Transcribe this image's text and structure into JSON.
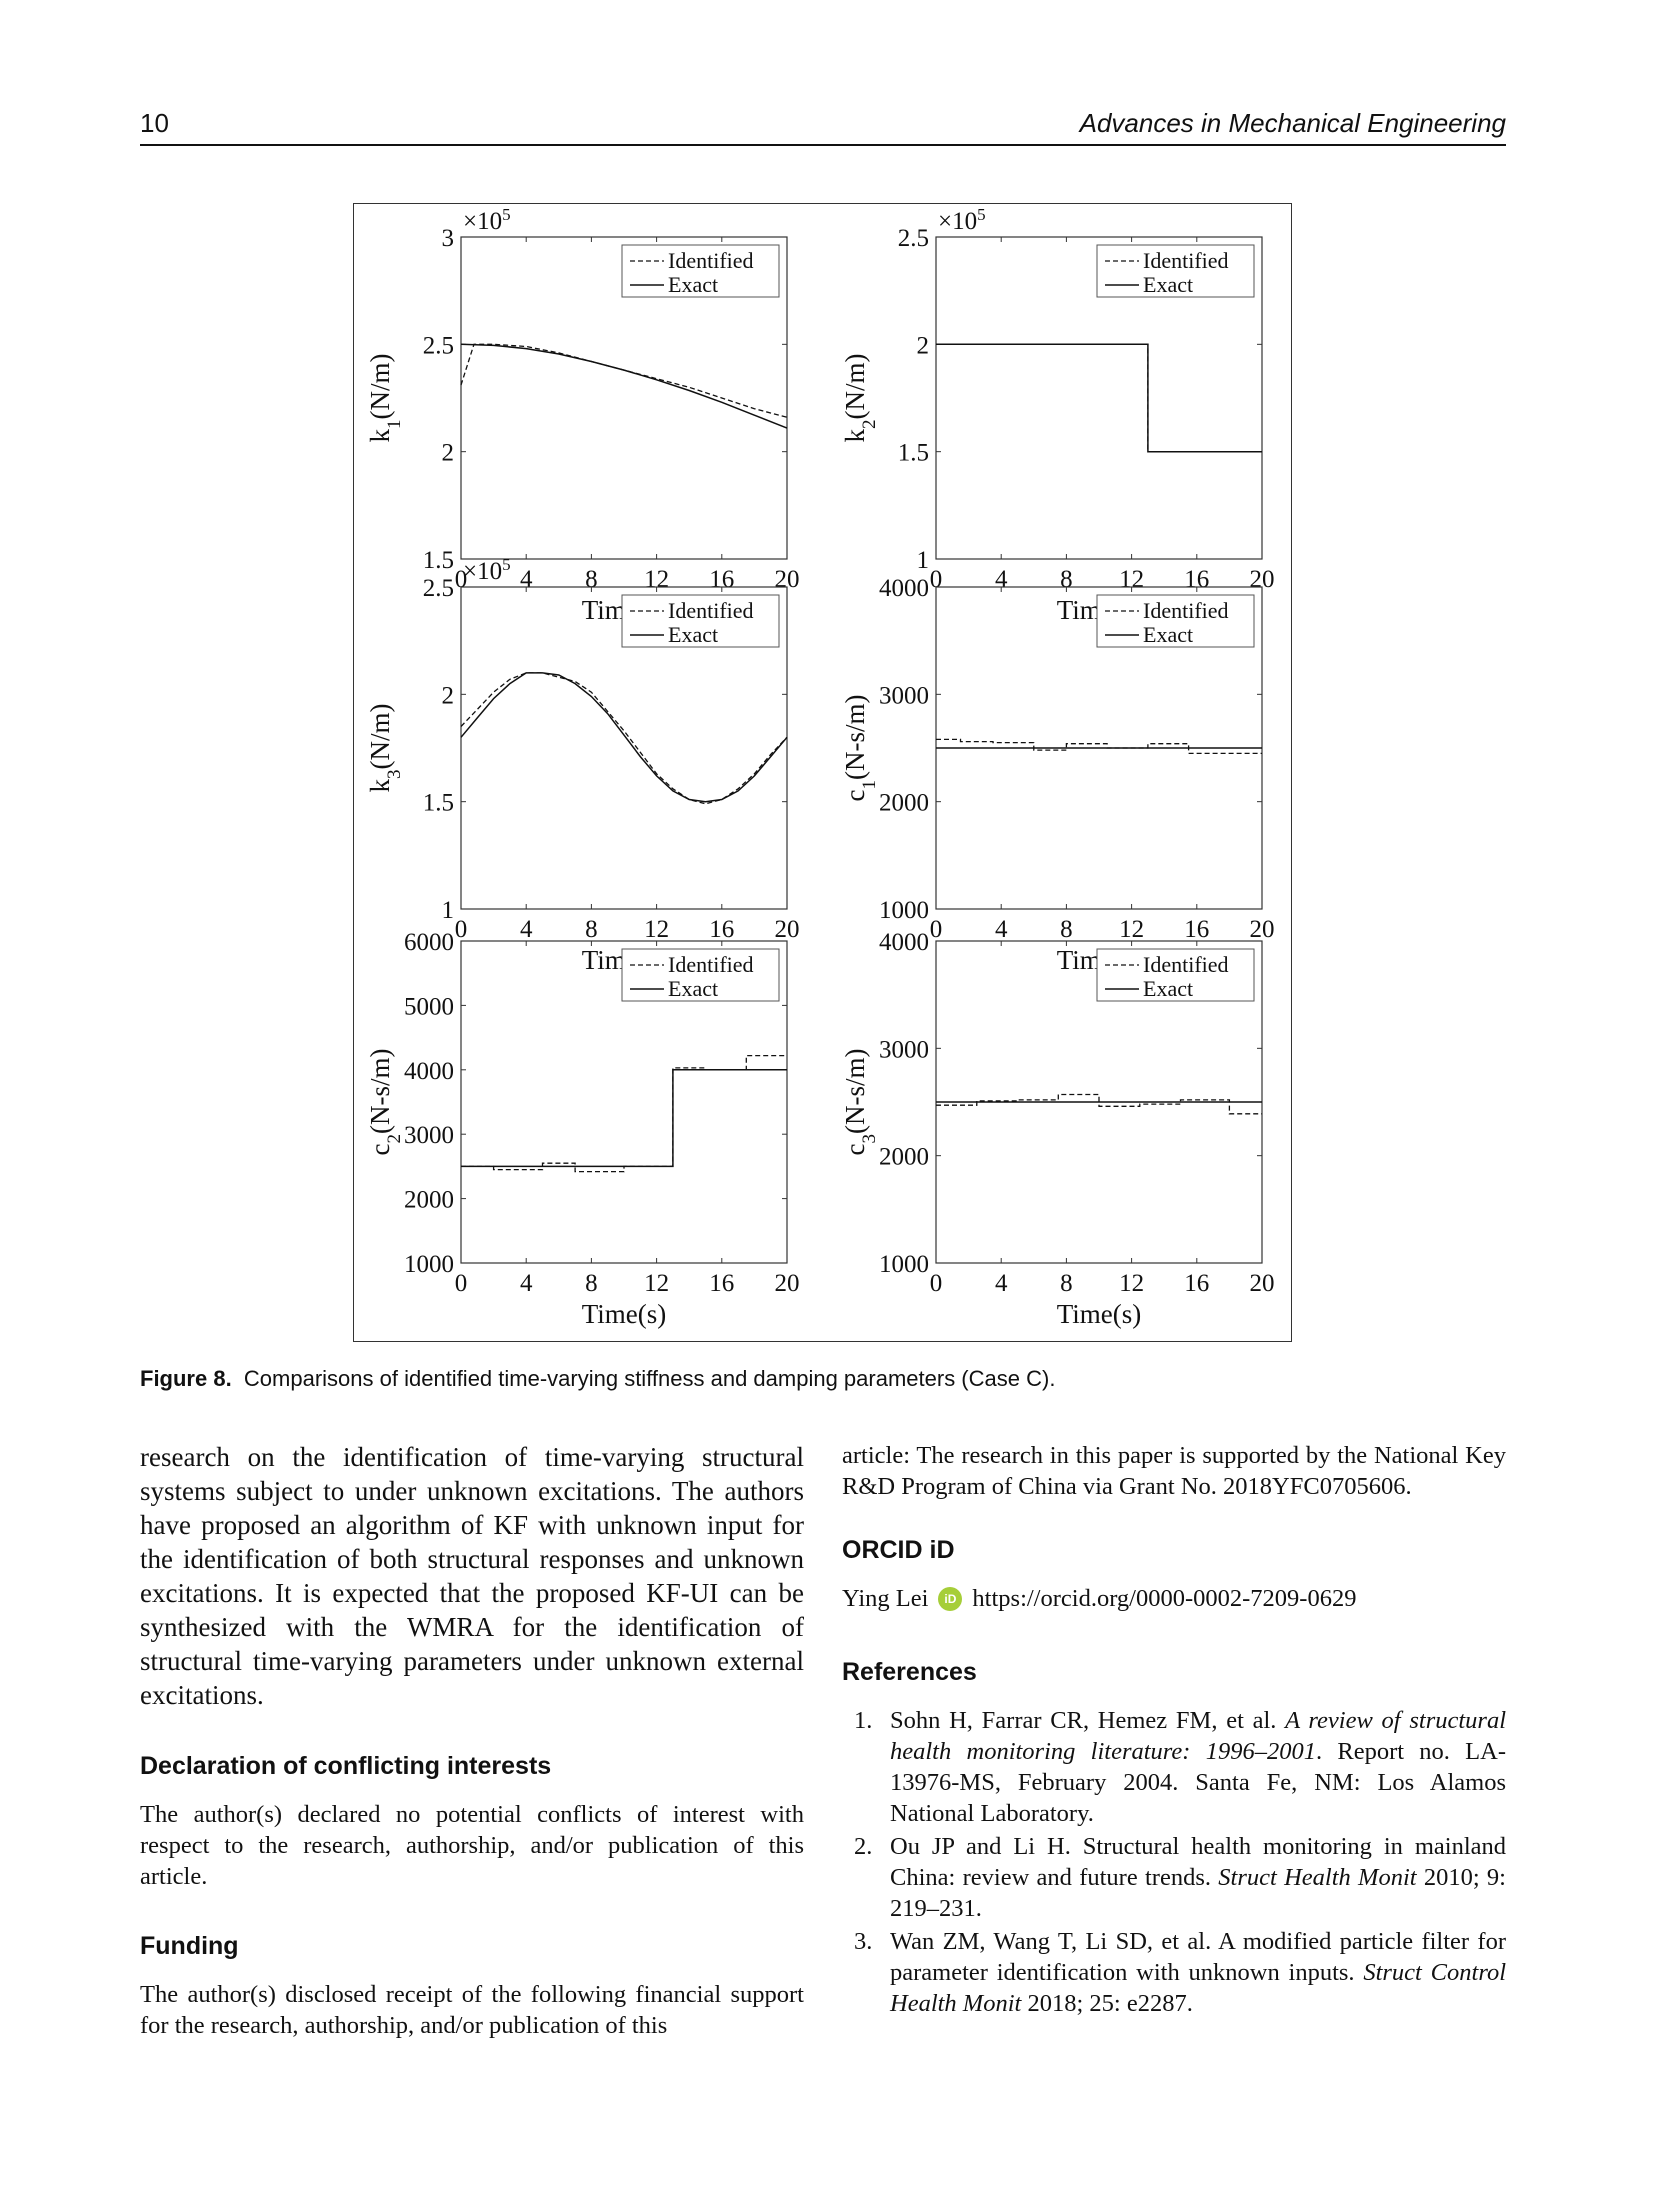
{
  "header": {
    "page_number": "10",
    "journal": "Advances in Mechanical Engineering"
  },
  "figure": {
    "caption_label": "Figure 8.",
    "caption_text": "Comparisons of identified time-varying stiffness and damping parameters (Case C).",
    "legend": {
      "identified": "Identified",
      "exact": "Exact"
    }
  },
  "chart_data": [
    {
      "type": "line",
      "id": "k1",
      "ylabel": "k1(N/m)",
      "xlabel": "Time(s)",
      "multiplier": "×10^5",
      "xlim": [
        0,
        20
      ],
      "ylim": [
        1.5,
        3
      ],
      "xticks": [
        "0",
        "4",
        "8",
        "12",
        "16",
        "20"
      ],
      "yticks": [
        "1.5",
        "2",
        "2.5",
        "3"
      ],
      "series": [
        {
          "name": "Identified",
          "x": [
            0,
            0.8,
            2,
            4,
            6,
            8,
            10,
            12,
            14,
            16,
            18,
            20
          ],
          "y": [
            2.31,
            2.5,
            2.5,
            2.49,
            2.46,
            2.42,
            2.38,
            2.34,
            2.3,
            2.25,
            2.2,
            2.16
          ]
        },
        {
          "name": "Exact",
          "x": [
            0,
            2,
            4,
            6,
            8,
            10,
            12,
            14,
            16,
            18,
            20
          ],
          "y": [
            2.5,
            2.495,
            2.48,
            2.455,
            2.42,
            2.38,
            2.335,
            2.285,
            2.23,
            2.17,
            2.11
          ]
        }
      ]
    },
    {
      "type": "line",
      "id": "k2",
      "ylabel": "k2(N/m)",
      "xlabel": "Time(s)",
      "multiplier": "×10^5",
      "xlim": [
        0,
        20
      ],
      "ylim": [
        1,
        2.5
      ],
      "xticks": [
        "0",
        "4",
        "8",
        "12",
        "16",
        "20"
      ],
      "yticks": [
        "1",
        "1.5",
        "2",
        "2.5"
      ],
      "series": [
        {
          "name": "Identified",
          "x": [
            0,
            13,
            13,
            20
          ],
          "y": [
            2.0,
            2.0,
            1.5,
            1.5
          ]
        },
        {
          "name": "Exact",
          "x": [
            0,
            13,
            13,
            20
          ],
          "y": [
            2.0,
            2.0,
            1.5,
            1.5
          ]
        }
      ]
    },
    {
      "type": "line",
      "id": "k3",
      "ylabel": "k3(N/m)",
      "xlabel": "Time(s)",
      "multiplier": "×10^5",
      "xlim": [
        0,
        20
      ],
      "ylim": [
        1,
        2.5
      ],
      "xticks": [
        "0",
        "4",
        "8",
        "12",
        "16",
        "20"
      ],
      "yticks": [
        "1",
        "1.5",
        "2",
        "2.5"
      ],
      "series": [
        {
          "name": "Identified",
          "x": [
            0,
            1,
            2,
            3,
            4,
            5,
            6,
            7,
            8,
            9,
            10,
            11,
            12,
            13,
            14,
            15,
            16,
            17,
            18,
            19,
            20
          ],
          "y": [
            1.85,
            1.93,
            2.01,
            2.07,
            2.1,
            2.1,
            2.08,
            2.06,
            2.01,
            1.92,
            1.83,
            1.73,
            1.63,
            1.56,
            1.51,
            1.49,
            1.51,
            1.56,
            1.63,
            1.72,
            1.8
          ]
        },
        {
          "name": "Exact",
          "x": [
            0,
            1,
            2,
            3,
            4,
            5,
            6,
            7,
            8,
            9,
            10,
            11,
            12,
            13,
            14,
            15,
            16,
            17,
            18,
            19,
            20
          ],
          "y": [
            1.8,
            1.89,
            1.98,
            2.05,
            2.1,
            2.1,
            2.09,
            2.05,
            1.99,
            1.91,
            1.81,
            1.71,
            1.62,
            1.55,
            1.51,
            1.5,
            1.51,
            1.55,
            1.62,
            1.71,
            1.8
          ]
        }
      ]
    },
    {
      "type": "line",
      "id": "c1",
      "ylabel": "c1(N-s/m)",
      "xlabel": "Time(s)",
      "xlim": [
        0,
        20
      ],
      "ylim": [
        1000,
        4000
      ],
      "xticks": [
        "0",
        "4",
        "8",
        "12",
        "16",
        "20"
      ],
      "yticks": [
        "1000",
        "2000",
        "3000",
        "4000"
      ],
      "series": [
        {
          "name": "Identified",
          "x": [
            0,
            1.5,
            1.5,
            3.5,
            3.5,
            6,
            6,
            8,
            8,
            10.5,
            10.5,
            13,
            13,
            15.5,
            15.5,
            20
          ],
          "y": [
            2580,
            2580,
            2560,
            2560,
            2550,
            2550,
            2480,
            2480,
            2540,
            2540,
            2500,
            2500,
            2540,
            2540,
            2450,
            2450
          ]
        },
        {
          "name": "Exact",
          "x": [
            0,
            20
          ],
          "y": [
            2500,
            2500
          ]
        }
      ]
    },
    {
      "type": "line",
      "id": "c2",
      "ylabel": "c2(N-s/m)",
      "xlabel": "Time(s)",
      "xlim": [
        0,
        20
      ],
      "ylim": [
        1000,
        6000
      ],
      "xticks": [
        "0",
        "4",
        "8",
        "12",
        "16",
        "20"
      ],
      "yticks": [
        "1000",
        "2000",
        "3000",
        "4000",
        "5000",
        "6000"
      ],
      "series": [
        {
          "name": "Identified",
          "x": [
            0,
            2,
            2,
            5,
            5,
            7,
            7,
            10,
            10,
            13,
            13,
            15,
            15,
            17.5,
            17.5,
            20
          ],
          "y": [
            2500,
            2500,
            2450,
            2450,
            2550,
            2550,
            2420,
            2420,
            2500,
            2500,
            4030,
            4030,
            4000,
            4000,
            4220,
            4220
          ]
        },
        {
          "name": "Exact",
          "x": [
            0,
            13,
            13,
            20
          ],
          "y": [
            2500,
            2500,
            4000,
            4000
          ]
        }
      ]
    },
    {
      "type": "line",
      "id": "c3",
      "ylabel": "c3(N-s/m)",
      "xlabel": "Time(s)",
      "xlim": [
        0,
        20
      ],
      "ylim": [
        1000,
        4000
      ],
      "xticks": [
        "0",
        "4",
        "8",
        "12",
        "16",
        "20"
      ],
      "yticks": [
        "1000",
        "2000",
        "3000",
        "4000"
      ],
      "series": [
        {
          "name": "Identified",
          "x": [
            0,
            2.5,
            2.5,
            5,
            5,
            7.5,
            7.5,
            10,
            10,
            12.5,
            12.5,
            15,
            15,
            17.5,
            17.5,
            18,
            18,
            20
          ],
          "y": [
            2470,
            2470,
            2510,
            2510,
            2520,
            2520,
            2570,
            2570,
            2460,
            2460,
            2480,
            2480,
            2520,
            2520,
            2520,
            2520,
            2390,
            2390
          ]
        },
        {
          "name": "Exact",
          "x": [
            0,
            20
          ],
          "y": [
            2500,
            2500
          ]
        }
      ]
    }
  ],
  "left_column": {
    "intro": "research on the identification of time-varying structural systems subject to under unknown excitations. The authors have proposed an algorithm of KF with unknown input for the identification of both structural responses and unknown excitations. It is expected that the proposed KF-UI can be synthesized with the WMRA for the identification of structural time-varying parameters under unknown external excitations.",
    "conflict_heading": "Declaration of conflicting interests",
    "conflict_text": "The author(s) declared no potential conflicts of interest with respect to the research, authorship, and/or publication of this article.",
    "funding_heading": "Funding",
    "funding_text": "The author(s) disclosed receipt of the following financial support for the research, authorship, and/or publication of this"
  },
  "right_column": {
    "funding_cont": "article: The research in this paper is supported by the National Key R&D Program of China via Grant No. 2018YFC0705606.",
    "orcid_heading": "ORCID iD",
    "orcid_name": "Ying Lei",
    "orcid_badge": "iD",
    "orcid_url": "https://orcid.org/0000-0002-7209-0629",
    "references_heading": "References",
    "references": [
      {
        "num": "1.",
        "pre": "Sohn H, Farrar CR, Hemez FM, et al. ",
        "title": "A review of structural health monitoring literature: 1996–2001",
        "post": ". Report no. LA-13976-MS, February 2004. Santa Fe, NM: Los Alamos National Laboratory."
      },
      {
        "num": "2.",
        "pre": "Ou JP and Li H. Structural health monitoring in mainland China: review and future trends. ",
        "title": "Struct Health Monit",
        "post": " 2010; 9: 219–231."
      },
      {
        "num": "3.",
        "pre": "Wan ZM, Wang T, Li SD, et al. A modified particle filter for parameter identification with unknown inputs. ",
        "title": "Struct Control Health Monit",
        "post": " 2018; 25: e2287."
      }
    ]
  }
}
